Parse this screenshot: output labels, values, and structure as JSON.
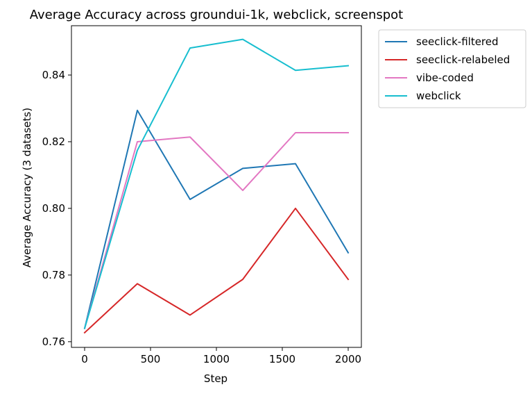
{
  "chart_data": {
    "type": "line",
    "title": "Average Accuracy across groundui-1k, webclick, screenspot",
    "xlabel": "Step",
    "ylabel": "Average Accuracy (3 datasets)",
    "xlim": [
      -100,
      2100
    ],
    "ylim": [
      0.7583,
      0.8548
    ],
    "xticks": [
      0,
      500,
      1000,
      1500,
      2000
    ],
    "xtick_labels": [
      "0",
      "500",
      "1000",
      "1500",
      "2000"
    ],
    "yticks": [
      0.76,
      0.78,
      0.8,
      0.82,
      0.84
    ],
    "ytick_labels": [
      "0.76",
      "0.78",
      "0.80",
      "0.82",
      "0.84"
    ],
    "grid": false,
    "legend_position": "outside-upper-right",
    "x": [
      0,
      400,
      800,
      1200,
      1600,
      2000
    ],
    "series": [
      {
        "name": "seeclick-filtered",
        "color": "#1f77b4",
        "values": [
          0.764,
          0.8294,
          0.8027,
          0.812,
          0.8134,
          0.7867
        ]
      },
      {
        "name": "seeclick-relabeled",
        "color": "#d62728",
        "values": [
          0.7627,
          0.7774,
          0.768,
          0.7787,
          0.8,
          0.7787
        ]
      },
      {
        "name": "vibe-coded",
        "color": "#e377c2",
        "values": [
          0.764,
          0.82,
          0.8214,
          0.8054,
          0.8227,
          0.8227
        ]
      },
      {
        "name": "webclick",
        "color": "#17becf",
        "values": [
          0.764,
          0.8174,
          0.8481,
          0.8507,
          0.8414,
          0.8428
        ]
      }
    ]
  }
}
